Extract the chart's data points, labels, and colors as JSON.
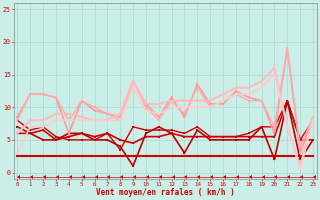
{
  "x": [
    0,
    1,
    2,
    3,
    4,
    5,
    6,
    7,
    8,
    9,
    10,
    11,
    12,
    13,
    14,
    15,
    16,
    17,
    18,
    19,
    20,
    21,
    22,
    23
  ],
  "bg_color": "#cceee8",
  "grid_color": "#aad8d2",
  "xlabel": "Vent moyen/en rafales ( km/h )",
  "xlabel_color": "#cc0000",
  "tick_color": "#cc0000",
  "ylim": [
    -1,
    26
  ],
  "xlim": [
    -0.3,
    23.3
  ],
  "yticks": [
    0,
    5,
    10,
    15,
    20,
    25
  ],
  "series": [
    {
      "y": [
        2.5,
        2.5,
        2.5,
        2.5,
        2.5,
        2.5,
        2.5,
        2.5,
        2.5,
        2.5,
        2.5,
        2.5,
        2.5,
        2.5,
        2.5,
        2.5,
        2.5,
        2.5,
        2.5,
        2.5,
        2.5,
        2.5,
        2.5,
        2.5
      ],
      "color": "#cc0000",
      "lw": 1.5,
      "marker": "s",
      "ms": 1.5,
      "ls": "solid"
    },
    {
      "y": [
        7,
        6,
        6.5,
        5,
        5.5,
        6,
        5.5,
        6,
        5,
        4.5,
        5.5,
        5.5,
        6,
        5.5,
        5.5,
        5.5,
        5.5,
        5.5,
        5.5,
        5.5,
        5.5,
        11,
        5,
        5
      ],
      "color": "#cc0000",
      "lw": 1.2,
      "marker": "s",
      "ms": 1.5,
      "ls": "solid"
    },
    {
      "y": [
        6,
        6,
        5,
        5,
        6,
        6,
        5,
        5,
        4,
        1,
        6,
        7,
        6,
        3,
        6.5,
        5,
        5,
        5,
        5,
        7,
        2,
        11,
        2,
        5
      ],
      "color": "#bb0000",
      "lw": 1.2,
      "marker": "s",
      "ms": 1.5,
      "ls": "solid"
    },
    {
      "y": [
        8,
        6.5,
        7,
        5.5,
        5,
        5,
        5,
        6,
        3.5,
        7,
        6.5,
        6.5,
        6.5,
        6,
        7,
        5.5,
        5.5,
        5.5,
        6,
        7,
        7,
        11,
        5,
        8
      ],
      "color": "#cc0000",
      "lw": 1.0,
      "marker": "s",
      "ms": 1.5,
      "ls": "solid"
    },
    {
      "y": [
        8.5,
        12,
        12,
        11.5,
        6,
        11,
        9.5,
        9,
        8.5,
        14,
        10.5,
        8.5,
        11.5,
        8.5,
        13.5,
        10.5,
        10.5,
        12.5,
        11.5,
        11,
        6,
        19,
        3,
        8.5
      ],
      "color": "#ff9999",
      "lw": 1.2,
      "marker": "s",
      "ms": 1.5,
      "ls": "solid"
    },
    {
      "y": [
        8,
        12,
        12,
        11.5,
        8,
        11,
        10,
        9,
        8,
        14,
        10,
        8,
        11,
        9,
        13,
        10,
        11,
        12,
        11,
        11,
        7,
        19,
        4,
        8.5
      ],
      "color": "#ffaaaa",
      "lw": 1.0,
      "marker": "s",
      "ms": 1.5,
      "ls": "solid"
    },
    {
      "y": [
        6,
        8,
        8,
        9,
        9,
        8.5,
        8,
        8,
        9,
        14,
        10.5,
        10.5,
        11,
        11,
        11,
        11,
        12,
        13,
        13,
        14,
        16,
        7,
        1,
        8.5
      ],
      "color": "#ffbbbb",
      "lw": 1.5,
      "marker": "s",
      "ms": 1.5,
      "ls": "solid"
    },
    {
      "y": [
        3,
        7,
        7,
        8,
        8,
        8,
        8,
        8,
        8,
        13,
        9.5,
        9,
        10,
        10,
        10,
        10,
        11,
        12,
        12,
        13,
        15,
        7,
        0.5,
        8
      ],
      "color": "#ffcccc",
      "lw": 1.2,
      "marker": "s",
      "ms": 1.5,
      "ls": "solid"
    },
    {
      "y": [
        -0.7,
        -0.7,
        -0.7,
        -0.7,
        -0.7,
        -0.7,
        -0.7,
        -0.7,
        -0.7,
        -0.7,
        -0.7,
        -0.7,
        -0.7,
        -0.7,
        -0.7,
        -0.7,
        -0.7,
        -0.7,
        -0.7,
        -0.7,
        -0.7,
        -0.7,
        -0.7,
        -0.7
      ],
      "color": "#cc0000",
      "lw": 0.5,
      "marker": 4,
      "ms": 3,
      "ls": "solid"
    }
  ]
}
